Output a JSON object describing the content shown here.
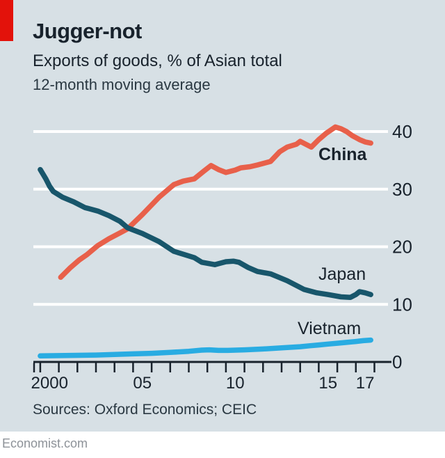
{
  "header": {
    "title": "Jugger-not",
    "subtitle": "Exports of goods, % of Asian total",
    "note": "12-month moving average"
  },
  "footer": {
    "sources": "Sources: Oxford Economics; CEIC",
    "site": "Economist.com"
  },
  "colors": {
    "background": "#D7E0E5",
    "red_tab": "#E3120B",
    "text": "#18222C",
    "grid": "#FFFFFF",
    "axis": "#18222C",
    "china": "#E8604A",
    "japan": "#18566B",
    "vietnam": "#29ACE2",
    "site_text": "#8D9298"
  },
  "chart_data": {
    "type": "line",
    "title": "Jugger-not",
    "subtitle": "Exports of goods, % of Asian total",
    "note": "12-month moving average",
    "xlabel": "",
    "ylabel": "% of Asian total",
    "ylim": [
      0,
      43
    ],
    "yticks": [
      0,
      10,
      20,
      30,
      40
    ],
    "xlim": [
      1999.6,
      2018.4
    ],
    "xtick_years_start": 2000,
    "xtick_years_end": 2018,
    "xtick_labels": [
      {
        "label": "2000",
        "year": 2000
      },
      {
        "label": "05",
        "year": 2005
      },
      {
        "label": "10",
        "year": 2010
      },
      {
        "label": "15",
        "year": 2015
      },
      {
        "label": "17",
        "year": 2017
      }
    ],
    "grid": "horizontal-white",
    "legend_position": "inline-labels",
    "series": [
      {
        "name": "China",
        "color": "#E8604A",
        "label_bold": true,
        "points": [
          [
            2001.1,
            14.7
          ],
          [
            2001.6,
            16.3
          ],
          [
            2002.1,
            17.7
          ],
          [
            2002.5,
            18.6
          ],
          [
            2003.1,
            20.2
          ],
          [
            2003.7,
            21.4
          ],
          [
            2004.3,
            22.4
          ],
          [
            2004.7,
            23.1
          ],
          [
            2005.5,
            25.6
          ],
          [
            2006.4,
            28.6
          ],
          [
            2007.2,
            30.8
          ],
          [
            2007.7,
            31.4
          ],
          [
            2008.3,
            31.8
          ],
          [
            2008.8,
            33.1
          ],
          [
            2009.2,
            34.1
          ],
          [
            2009.6,
            33.4
          ],
          [
            2010.0,
            32.9
          ],
          [
            2010.5,
            33.3
          ],
          [
            2010.8,
            33.7
          ],
          [
            2011.3,
            33.9
          ],
          [
            2011.7,
            34.2
          ],
          [
            2012.4,
            34.8
          ],
          [
            2012.9,
            36.5
          ],
          [
            2013.3,
            37.3
          ],
          [
            2013.8,
            37.8
          ],
          [
            2014.0,
            38.3
          ],
          [
            2014.3,
            37.8
          ],
          [
            2014.6,
            37.3
          ],
          [
            2015.0,
            38.6
          ],
          [
            2015.4,
            39.7
          ],
          [
            2015.9,
            40.8
          ],
          [
            2016.2,
            40.5
          ],
          [
            2016.5,
            40.0
          ],
          [
            2016.8,
            39.3
          ],
          [
            2017.2,
            38.6
          ],
          [
            2017.5,
            38.2
          ],
          [
            2017.8,
            38.0
          ]
        ]
      },
      {
        "name": "Japan",
        "color": "#18566B",
        "label_bold": false,
        "points": [
          [
            2000.0,
            33.4
          ],
          [
            2000.3,
            31.8
          ],
          [
            2000.5,
            30.5
          ],
          [
            2000.7,
            29.6
          ],
          [
            2001.2,
            28.6
          ],
          [
            2001.8,
            27.8
          ],
          [
            2002.4,
            26.8
          ],
          [
            2003.1,
            26.2
          ],
          [
            2003.7,
            25.4
          ],
          [
            2004.3,
            24.4
          ],
          [
            2004.7,
            23.3
          ],
          [
            2005.5,
            22.3
          ],
          [
            2006.4,
            20.9
          ],
          [
            2007.2,
            19.2
          ],
          [
            2007.8,
            18.6
          ],
          [
            2008.3,
            18.1
          ],
          [
            2008.7,
            17.3
          ],
          [
            2009.4,
            16.9
          ],
          [
            2010.0,
            17.4
          ],
          [
            2010.4,
            17.5
          ],
          [
            2010.7,
            17.3
          ],
          [
            2011.2,
            16.4
          ],
          [
            2011.7,
            15.7
          ],
          [
            2012.4,
            15.3
          ],
          [
            2013.3,
            14.1
          ],
          [
            2014.2,
            12.6
          ],
          [
            2014.9,
            12.0
          ],
          [
            2015.5,
            11.7
          ],
          [
            2016.2,
            11.3
          ],
          [
            2016.7,
            11.2
          ],
          [
            2017.0,
            11.7
          ],
          [
            2017.2,
            12.2
          ],
          [
            2017.5,
            12.0
          ],
          [
            2017.8,
            11.7
          ]
        ]
      },
      {
        "name": "Vietnam",
        "color": "#29ACE2",
        "label_bold": false,
        "points": [
          [
            2000.0,
            1.05
          ],
          [
            2001.0,
            1.1
          ],
          [
            2002.0,
            1.15
          ],
          [
            2003.0,
            1.2
          ],
          [
            2004.0,
            1.3
          ],
          [
            2005.0,
            1.4
          ],
          [
            2006.0,
            1.5
          ],
          [
            2007.0,
            1.65
          ],
          [
            2008.0,
            1.85
          ],
          [
            2008.7,
            2.05
          ],
          [
            2009.1,
            2.1
          ],
          [
            2009.6,
            2.0
          ],
          [
            2010.1,
            2.0
          ],
          [
            2011.0,
            2.1
          ],
          [
            2012.0,
            2.25
          ],
          [
            2013.0,
            2.45
          ],
          [
            2014.0,
            2.65
          ],
          [
            2014.5,
            2.8
          ],
          [
            2015.0,
            2.95
          ],
          [
            2015.5,
            3.1
          ],
          [
            2016.0,
            3.25
          ],
          [
            2016.5,
            3.4
          ],
          [
            2017.0,
            3.55
          ],
          [
            2017.4,
            3.7
          ],
          [
            2017.8,
            3.8
          ]
        ]
      }
    ]
  }
}
